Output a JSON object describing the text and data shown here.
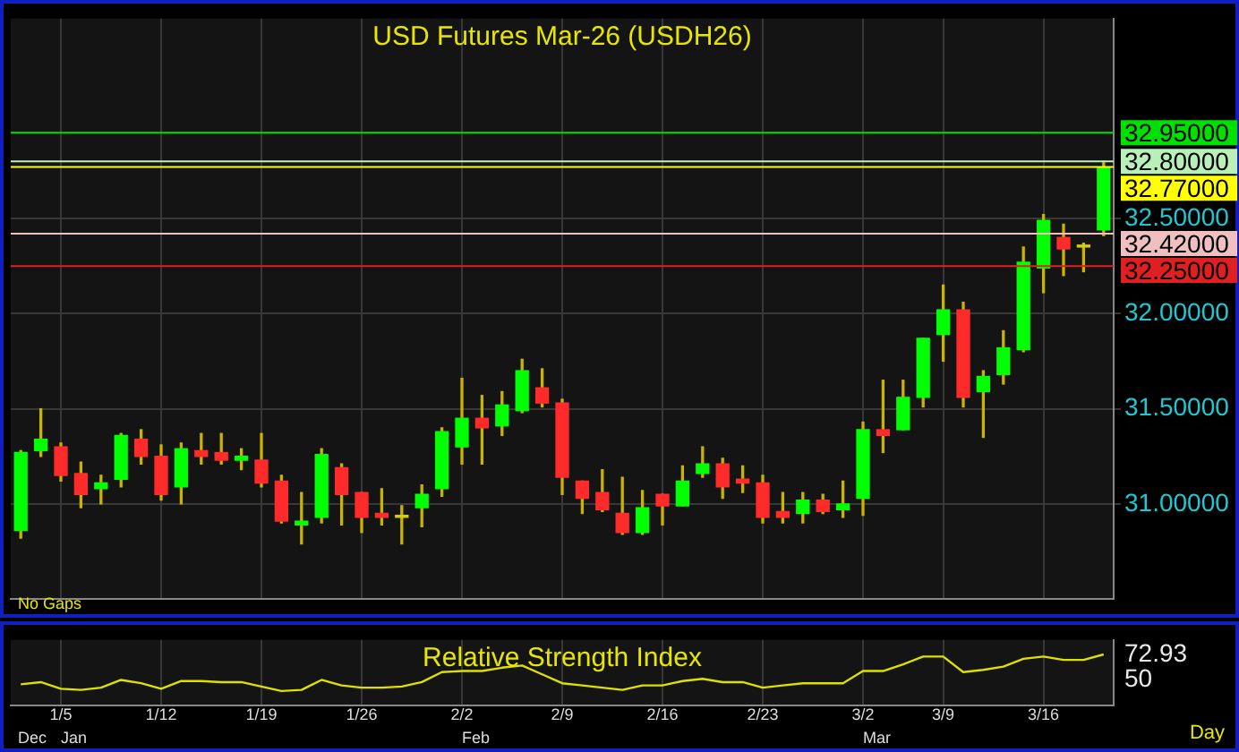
{
  "chart_data": [
    {
      "type": "candlestick",
      "title": "USD Futures Mar-26 (USDH26)",
      "ohlc": [
        [
          30.86,
          31.28,
          30.82,
          31.27
        ],
        [
          31.28,
          31.5,
          31.25,
          31.34
        ],
        [
          31.3,
          31.32,
          31.12,
          31.15
        ],
        [
          31.16,
          31.22,
          30.98,
          31.05
        ],
        [
          31.08,
          31.15,
          31.0,
          31.11
        ],
        [
          31.13,
          31.37,
          31.09,
          31.36
        ],
        [
          31.34,
          31.39,
          31.21,
          31.25
        ],
        [
          31.25,
          31.31,
          31.02,
          31.05
        ],
        [
          31.09,
          31.32,
          31.0,
          31.29
        ],
        [
          31.28,
          31.37,
          31.21,
          31.25
        ],
        [
          31.27,
          31.37,
          31.21,
          31.23
        ],
        [
          31.23,
          31.29,
          31.18,
          31.25
        ],
        [
          31.23,
          31.37,
          31.09,
          31.11
        ],
        [
          31.12,
          31.15,
          30.9,
          30.91
        ],
        [
          30.89,
          31.06,
          30.79,
          30.91
        ],
        [
          30.93,
          31.29,
          30.9,
          31.26
        ],
        [
          31.19,
          31.21,
          30.89,
          31.05
        ],
        [
          31.06,
          31.06,
          30.85,
          30.93
        ],
        [
          30.95,
          31.08,
          30.89,
          30.93
        ],
        [
          30.93,
          30.99,
          30.79,
          30.94
        ],
        [
          30.98,
          31.1,
          30.88,
          31.05
        ],
        [
          31.08,
          31.4,
          31.04,
          31.38
        ],
        [
          31.3,
          31.66,
          31.21,
          31.45
        ],
        [
          31.45,
          31.57,
          31.21,
          31.4
        ],
        [
          31.41,
          31.59,
          31.36,
          31.52
        ],
        [
          31.49,
          31.76,
          31.48,
          31.7
        ],
        [
          31.61,
          31.71,
          31.51,
          31.53
        ],
        [
          31.53,
          31.55,
          31.05,
          31.14
        ],
        [
          31.12,
          31.12,
          30.95,
          31.03
        ],
        [
          31.06,
          31.18,
          30.96,
          30.97
        ],
        [
          30.95,
          31.14,
          30.84,
          30.85
        ],
        [
          30.85,
          31.07,
          30.84,
          30.98
        ],
        [
          31.05,
          31.05,
          30.89,
          30.99
        ],
        [
          30.99,
          31.2,
          30.99,
          31.12
        ],
        [
          31.16,
          31.3,
          31.14,
          31.21
        ],
        [
          31.21,
          31.24,
          31.03,
          31.09
        ],
        [
          31.13,
          31.2,
          31.06,
          31.11
        ],
        [
          31.11,
          31.15,
          30.9,
          30.93
        ],
        [
          30.96,
          31.06,
          30.9,
          30.93
        ],
        [
          30.95,
          31.06,
          30.9,
          31.02
        ],
        [
          31.02,
          31.05,
          30.95,
          30.96
        ],
        [
          30.97,
          31.12,
          30.93,
          31.0
        ],
        [
          31.03,
          31.43,
          30.94,
          31.39
        ],
        [
          31.39,
          31.65,
          31.27,
          31.36
        ],
        [
          31.39,
          31.65,
          31.39,
          31.56
        ],
        [
          31.56,
          31.87,
          31.51,
          31.87
        ],
        [
          31.89,
          32.15,
          31.75,
          32.02
        ],
        [
          32.02,
          32.06,
          31.51,
          31.56
        ],
        [
          31.59,
          31.7,
          31.35,
          31.67
        ],
        [
          31.68,
          31.91,
          31.63,
          31.82
        ],
        [
          31.81,
          32.35,
          31.8,
          32.27
        ],
        [
          32.24,
          32.52,
          32.11,
          32.49
        ],
        [
          32.4,
          32.47,
          32.2,
          32.34
        ],
        [
          32.35,
          32.37,
          32.22,
          32.36
        ],
        [
          32.44,
          32.8,
          32.41,
          32.77
        ]
      ],
      "colors": [
        "#00ff00",
        "#00ff00",
        "#ff2a2a",
        "#ff2a2a",
        "#00ff00",
        "#00ff00",
        "#ff2a2a",
        "#ff2a2a",
        "#00ff00",
        "#ff2a2a",
        "#ff2a2a",
        "#00ff00",
        "#ff2a2a",
        "#ff2a2a",
        "#00ff00",
        "#00ff00",
        "#ff2a2a",
        "#ff2a2a",
        "#ff2a2a",
        "#d8d000",
        "#00ff00",
        "#00ff00",
        "#00ff00",
        "#ff2a2a",
        "#00ff00",
        "#00ff00",
        "#ff2a2a",
        "#ff2a2a",
        "#ff2a2a",
        "#ff2a2a",
        "#ff2a2a",
        "#00ff00",
        "#ff2a2a",
        "#00ff00",
        "#00ff00",
        "#ff2a2a",
        "#ff2a2a",
        "#ff2a2a",
        "#ff2a2a",
        "#00ff00",
        "#ff2a2a",
        "#00ff00",
        "#00ff00",
        "#ff2a2a",
        "#00ff00",
        "#00ff00",
        "#00ff00",
        "#ff2a2a",
        "#00ff00",
        "#00ff00",
        "#00ff00",
        "#00ff00",
        "#ff2a2a",
        "#d8d000",
        "#00ff00"
      ],
      "ylim": [
        30.5,
        33.55
      ],
      "yticks": [
        {
          "value": 31,
          "label": "31.00000"
        },
        {
          "value": 31.5,
          "label": "31.50000"
        },
        {
          "value": 32,
          "label": "32.00000"
        },
        {
          "value": 32.5,
          "label": "32.50000"
        }
      ],
      "ref_lines": [
        {
          "axis": "y",
          "value": 32.95,
          "label": "32.95000",
          "color": "#00e000"
        },
        {
          "axis": "y",
          "value": 32.8,
          "label": "32.80000",
          "color": "#b8f0b8"
        },
        {
          "axis": "y",
          "value": 32.77,
          "label": "32.77000",
          "color": "#ffff00"
        },
        {
          "axis": "y",
          "value": 32.42,
          "label": "32.42000",
          "color": "#f0c0c0"
        },
        {
          "axis": "y",
          "value": 32.25,
          "label": "32.25000",
          "color": "#e02020"
        }
      ],
      "annotations": [
        "No Gaps"
      ],
      "grid": true,
      "tick_labels": "y"
    },
    {
      "type": "line",
      "title": "Relative Strength Index",
      "categories": [
        null,
        null,
        "1/5",
        null,
        null,
        null,
        null,
        "1/12",
        null,
        null,
        null,
        null,
        "1/19",
        null,
        null,
        null,
        null,
        "1/26",
        null,
        null,
        null,
        null,
        "2/2",
        null,
        null,
        null,
        null,
        "2/9",
        null,
        null,
        null,
        null,
        "2/16",
        null,
        null,
        null,
        null,
        "2/23",
        null,
        null,
        null,
        null,
        "3/2",
        null,
        null,
        null,
        "3/9",
        null,
        null,
        null,
        null,
        "3/16",
        null,
        null,
        null
      ],
      "series": [
        {
          "color": "#e0e000",
          "values": [
            46,
            48,
            42,
            41,
            43,
            50,
            47,
            42,
            49,
            49,
            48,
            48,
            44,
            40,
            41,
            50,
            45,
            43,
            43,
            44,
            48,
            57,
            58,
            58,
            61,
            63,
            55,
            47,
            45,
            43,
            41,
            45,
            45,
            49,
            51,
            48,
            48,
            43,
            45,
            47,
            47,
            47,
            58,
            58,
            64,
            71,
            71,
            57,
            59,
            62,
            69,
            71,
            68,
            68,
            72.93
          ]
        }
      ],
      "ylim": [
        27,
        86
      ],
      "yticks": [
        50,
        {
          "value": 72.93,
          "label": "72.93"
        }
      ],
      "annotations": [
        "Dec",
        "Jan",
        "Feb",
        "Mar",
        "Day"
      ],
      "grid": "x",
      "marker": "none",
      "line_style": "solid"
    }
  ]
}
